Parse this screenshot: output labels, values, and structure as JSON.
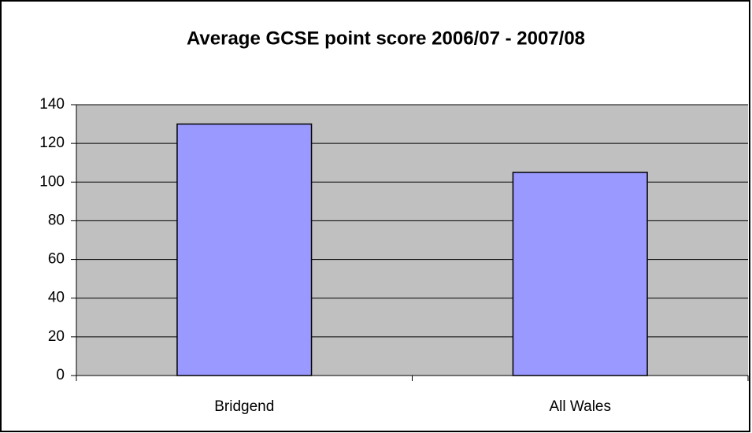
{
  "chart_data": {
    "type": "bar",
    "title": "Average GCSE point score 2006/07 - 2007/08",
    "categories": [
      "Bridgend",
      "All Wales"
    ],
    "values": [
      130,
      105
    ],
    "color": "#9999ff",
    "ylim": [
      0,
      140
    ],
    "yticks": [
      0,
      20,
      40,
      60,
      80,
      100,
      120,
      140
    ],
    "grid": true
  }
}
